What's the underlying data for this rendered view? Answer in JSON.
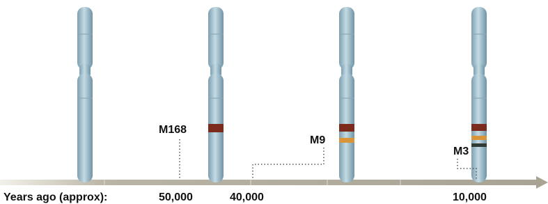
{
  "markers": [
    {
      "label": "M168"
    },
    {
      "label": "M9"
    },
    {
      "label": "M3"
    }
  ],
  "timeline": {
    "axis_label": "Years ago (approx):",
    "ticks": [
      "50,000",
      "40,000",
      "10,000"
    ]
  }
}
